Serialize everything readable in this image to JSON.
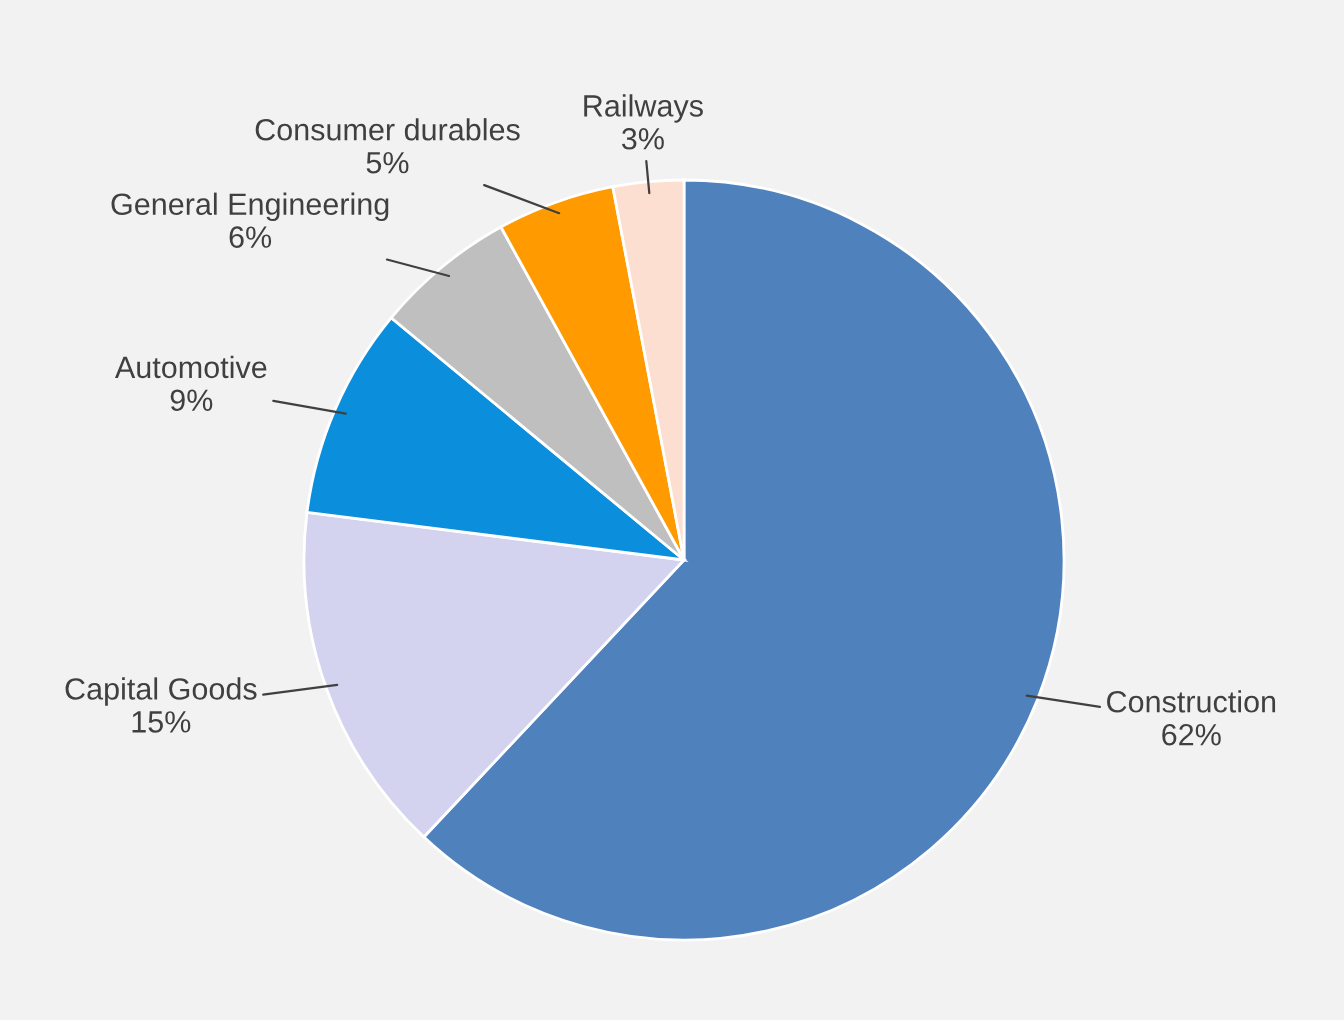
{
  "chart_data": {
    "type": "pie",
    "categories": [
      "Construction",
      "Capital Goods",
      "Automotive",
      "General Engineering",
      "Consumer durables",
      "Railways"
    ],
    "values": [
      62,
      15,
      9,
      6,
      5,
      3
    ],
    "value_labels": [
      "62%",
      "15%",
      "9%",
      "6%",
      "5%",
      "3%"
    ],
    "colors": [
      "#4f81bd",
      "#d3d3f0",
      "#0b8fdc",
      "#bfbfbf",
      "#ff9b00",
      "#fcdfd0"
    ],
    "legend": false
  }
}
